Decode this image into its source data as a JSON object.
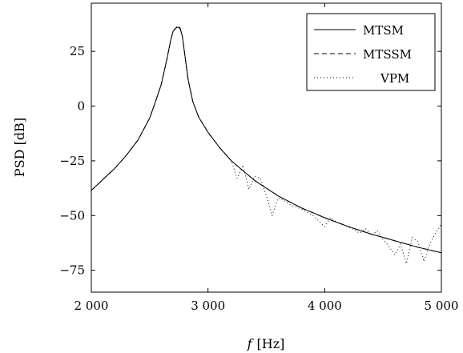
{
  "chart_data": {
    "type": "line",
    "xlabel_var": "f",
    "xlabel_unit": "[Hz]",
    "ylabel": "PSD [dB]",
    "xlim": [
      2000,
      5000
    ],
    "ylim": [
      -85,
      47
    ],
    "xticks": [
      2000,
      3000,
      4000,
      5000
    ],
    "xtick_labels": [
      "2 000",
      "3 000",
      "4 000",
      "5 000"
    ],
    "yticks": [
      25,
      0,
      -25,
      -50,
      -75
    ],
    "ytick_labels": [
      "25",
      "0",
      "−25",
      "−50",
      "−75"
    ],
    "grid": false,
    "legend_position": "top-right",
    "series": [
      {
        "name": "MTSM",
        "style": "solid",
        "x": [
          2000,
          2100,
          2200,
          2300,
          2400,
          2500,
          2550,
          2600,
          2650,
          2680,
          2700,
          2720,
          2740,
          2760,
          2780,
          2800,
          2830,
          2870,
          2920,
          3000,
          3100,
          3200,
          3300,
          3400,
          3500,
          3600,
          3800,
          4000,
          4200,
          4400,
          4600,
          4800,
          5000
        ],
        "values": [
          -38.5,
          -33.5,
          -28.5,
          -22.5,
          -15.5,
          -5.5,
          2,
          10,
          22,
          30,
          34,
          35.5,
          36,
          35.5,
          32,
          24,
          12,
          2,
          -5,
          -12,
          -19,
          -25,
          -29.5,
          -34,
          -37.5,
          -41,
          -46.5,
          -51,
          -55,
          -58.5,
          -61.5,
          -64.5,
          -67
        ]
      },
      {
        "name": "MTSSM",
        "style": "dashed",
        "x": [
          2000,
          2100,
          2200,
          2300,
          2400,
          2500,
          2550,
          2600,
          2650,
          2680,
          2700,
          2720,
          2740,
          2760,
          2780,
          2800,
          2830,
          2870,
          2920,
          3000,
          3100,
          3200,
          3300,
          3400,
          3500,
          3600,
          3800,
          4000,
          4200,
          4400,
          4600,
          4800,
          5000
        ],
        "values": [
          -38.5,
          -33.5,
          -28.5,
          -22.5,
          -15.5,
          -5.5,
          2,
          10,
          22,
          30,
          34,
          35.5,
          36.3,
          35.8,
          32,
          24,
          12,
          2,
          -5,
          -12,
          -19,
          -25,
          -29.5,
          -34,
          -37.5,
          -41,
          -46.5,
          -51,
          -55,
          -58.5,
          -61.5,
          -64.5,
          -67
        ]
      },
      {
        "name": "VPM",
        "style": "dotted",
        "x": [
          2000,
          2100,
          2200,
          2300,
          2400,
          2500,
          2550,
          2600,
          2650,
          2680,
          2700,
          2720,
          2740,
          2760,
          2780,
          2800,
          2830,
          2870,
          2920,
          3000,
          3100,
          3200,
          3250,
          3300,
          3350,
          3400,
          3450,
          3500,
          3550,
          3600,
          3650,
          3700,
          3800,
          3900,
          4000,
          4050,
          4100,
          4150,
          4200,
          4300,
          4350,
          4400,
          4450,
          4500,
          4550,
          4600,
          4650,
          4700,
          4750,
          4800,
          4850,
          4900,
          4950,
          5000
        ],
        "values": [
          -38.5,
          -33.5,
          -28.5,
          -22.5,
          -15.5,
          -5.5,
          2,
          10,
          22,
          30,
          34,
          35.5,
          36.8,
          36,
          32,
          24,
          12,
          2,
          -5,
          -12,
          -19,
          -25,
          -33,
          -27,
          -38,
          -32,
          -33,
          -41,
          -50,
          -42,
          -43,
          -45,
          -47,
          -50,
          -55,
          -51,
          -53,
          -54,
          -55,
          -58,
          -56,
          -59,
          -57,
          -61,
          -64,
          -68,
          -63,
          -72,
          -60,
          -62,
          -71,
          -63,
          -58,
          -54
        ]
      }
    ]
  }
}
